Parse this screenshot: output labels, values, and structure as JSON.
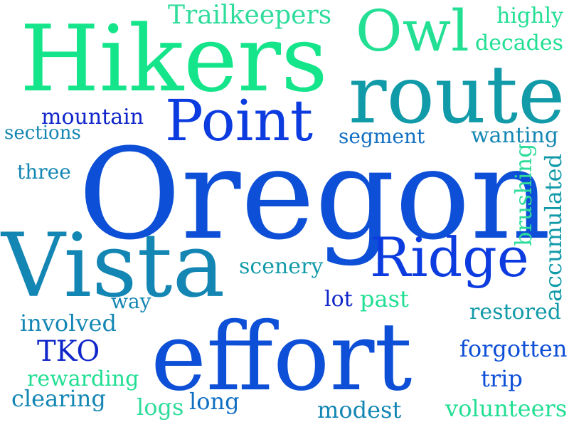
{
  "words": {
    "hikers": "Hikers",
    "owl": "Owl",
    "trailkeepers": "Trailkeepers",
    "highly": "highly",
    "decades": "decades",
    "route": "route",
    "point": "Point",
    "mountain": "mountain",
    "sections": "sections",
    "segment": "segment",
    "wanting": "wanting",
    "three": "three",
    "oregon": "Oregon",
    "brushing": "brushing",
    "accumulated": "accumulated",
    "vista": "Vista",
    "ridge": "Ridge",
    "scenery": "scenery",
    "way": "way",
    "lot": "lot",
    "past": "past",
    "restored": "restored",
    "involved": "involved",
    "effort": "effort",
    "tko": "TKO",
    "forgotten": "forgotten",
    "rewarding": "rewarding",
    "trip": "trip",
    "clearing": "clearing",
    "logs": "logs",
    "long": "long",
    "modest": "modest",
    "volunteers": "volunteers"
  },
  "colors": {
    "background": "#ffffff",
    "green_bright": "#15e58a",
    "green_mint": "#22df93",
    "green_soft": "#2fdc9b",
    "teal": "#119aa8",
    "teal_blue": "#1386b3",
    "blue_mid": "#116fc3",
    "blue": "#0d4fd6",
    "blue_deep": "#0c3cdf",
    "navy": "#1026c9"
  }
}
